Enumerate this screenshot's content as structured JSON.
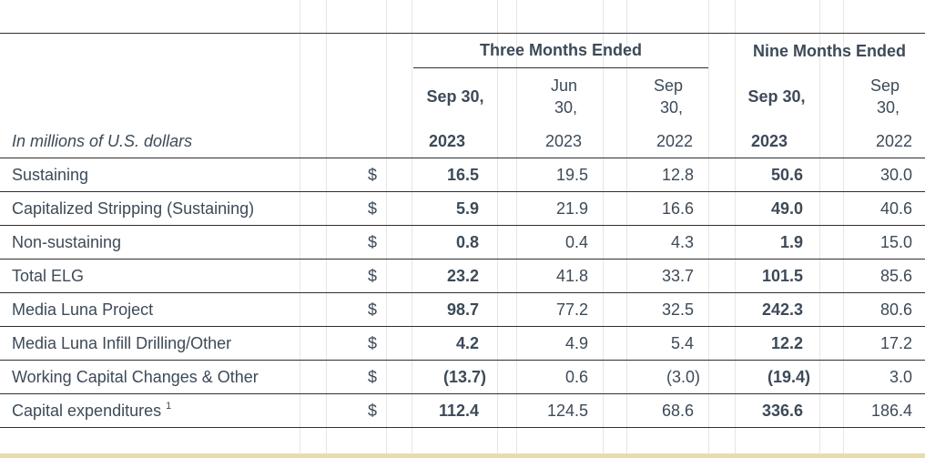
{
  "header": {
    "three_months": "Three Months Ended",
    "nine_months": "Nine Months Ended",
    "col1_top": "Sep 30,",
    "col2_top_a": "Jun",
    "col2_top_b": "30,",
    "col3_top_a": "Sep",
    "col3_top_b": "30,",
    "col4_top": "Sep 30,",
    "col5_top_a": "Sep",
    "col5_top_b": "30,",
    "units": "In millions of U.S. dollars",
    "col1_year": "2023",
    "col2_year": "2023",
    "col3_year": "2022",
    "col4_year": "2023",
    "col5_year": "2022"
  },
  "rows": [
    {
      "label": "Sustaining",
      "currency": "$",
      "v1": "16.5",
      "v2": "19.5",
      "v3": "12.8",
      "v4": "50.6",
      "v5": "30.0"
    },
    {
      "label": "Capitalized Stripping (Sustaining)",
      "currency": "$",
      "v1": "5.9",
      "v2": "21.9",
      "v3": "16.6",
      "v4": "49.0",
      "v5": "40.6"
    },
    {
      "label": "Non-sustaining",
      "currency": "$",
      "v1": "0.8",
      "v2": "0.4",
      "v3": "4.3",
      "v4": "1.9",
      "v5": "15.0"
    },
    {
      "label": "Total ELG",
      "currency": "$",
      "v1": "23.2",
      "v2": "41.8",
      "v3": "33.7",
      "v4": "101.5",
      "v5": "85.6"
    },
    {
      "label": "Media Luna Project",
      "currency": "$",
      "v1": "98.7",
      "v2": "77.2",
      "v3": "32.5",
      "v4": "242.3",
      "v5": "80.6"
    },
    {
      "label": "Media Luna Infill Drilling/Other",
      "currency": "$",
      "v1": "4.2",
      "v2": "4.9",
      "v3": "5.4",
      "v4": "12.2",
      "v5": "17.2"
    },
    {
      "label": "Working Capital Changes & Other",
      "currency": "$",
      "v1": "(13.7)",
      "v2": "0.6",
      "v3": "(3.0)",
      "v4": "(19.4)",
      "v5": "3.0"
    },
    {
      "label": "Capital expenditures",
      "footnote": "1",
      "currency": "$",
      "v1": "112.4",
      "v2": "124.5",
      "v3": "68.6",
      "v4": "336.6",
      "v5": "186.4"
    }
  ]
}
